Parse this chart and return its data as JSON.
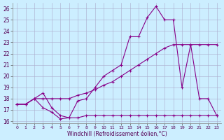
{
  "xlabel": "Windchill (Refroidissement éolien,°C)",
  "background_color": "#cceeff",
  "grid_color": "#aaaacc",
  "line_color": "#880088",
  "xlim": [
    -0.5,
    23.5
  ],
  "ylim": [
    15.8,
    26.5
  ],
  "yticks": [
    16,
    17,
    18,
    19,
    20,
    21,
    22,
    23,
    24,
    25,
    26
  ],
  "xticks": [
    0,
    1,
    2,
    3,
    4,
    5,
    6,
    7,
    8,
    9,
    10,
    11,
    12,
    13,
    14,
    15,
    16,
    17,
    18,
    19,
    20,
    21,
    22,
    23
  ],
  "line1_x": [
    0,
    1,
    2,
    3,
    4,
    5,
    6,
    7,
    8,
    9,
    10,
    11,
    12,
    13,
    14,
    15,
    16,
    17,
    18,
    19,
    20,
    21,
    22,
    23
  ],
  "line1_y": [
    17.5,
    17.5,
    18.0,
    18.0,
    18.0,
    18.0,
    18.0,
    18.3,
    18.5,
    18.8,
    19.2,
    19.5,
    20.0,
    20.5,
    21.0,
    21.5,
    22.0,
    22.5,
    22.8,
    22.8,
    22.8,
    22.8,
    22.8,
    22.8
  ],
  "line2_x": [
    0,
    1,
    2,
    3,
    4,
    5,
    6,
    7,
    8,
    9,
    10,
    11,
    12,
    13,
    14,
    15,
    16,
    17,
    18,
    19,
    20,
    21,
    22,
    23
  ],
  "line2_y": [
    17.5,
    17.5,
    18.0,
    18.5,
    17.2,
    16.5,
    16.3,
    17.8,
    18.0,
    19.0,
    20.0,
    20.5,
    21.0,
    23.5,
    23.5,
    25.2,
    26.2,
    25.0,
    25.0,
    19.0,
    22.8,
    18.0,
    18.0,
    16.5
  ],
  "line3_x": [
    0,
    1,
    2,
    3,
    4,
    5,
    6,
    7,
    8,
    9,
    10,
    11,
    12,
    13,
    14,
    15,
    16,
    17,
    18,
    19,
    20,
    21,
    22,
    23
  ],
  "line3_y": [
    17.5,
    17.5,
    18.0,
    17.2,
    16.8,
    16.2,
    16.3,
    16.3,
    16.5,
    16.5,
    16.5,
    16.5,
    16.5,
    16.5,
    16.5,
    16.5,
    16.5,
    16.5,
    16.5,
    16.5,
    16.5,
    16.5,
    16.5,
    16.5
  ]
}
